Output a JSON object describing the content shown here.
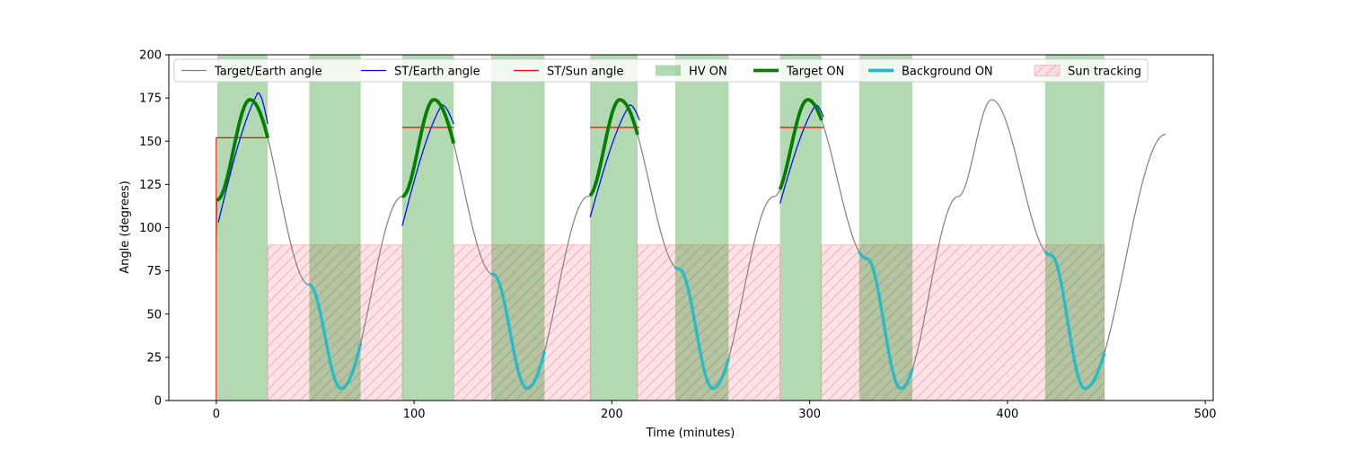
{
  "chart_data": {
    "type": "line",
    "xlabel": "Time (minutes)",
    "ylabel": "Angle (degrees)",
    "xlim": [
      -24,
      504
    ],
    "ylim": [
      0,
      200
    ],
    "x_ticks": [
      0,
      100,
      200,
      300,
      400,
      500
    ],
    "y_ticks": [
      0,
      25,
      50,
      75,
      100,
      125,
      150,
      175,
      200
    ],
    "grid": false,
    "legend_position": "top",
    "colors": {
      "target_earth": "#808080",
      "st_earth": "#0000ff",
      "st_sun": "#ff0000",
      "hv_on": "#008000",
      "target_on": "#008000",
      "background_on": "#17becf",
      "sun_tracking": "#ffb6c1"
    },
    "legend": [
      {
        "label": "Target/Earth angle",
        "kind": "line",
        "series": "target_earth"
      },
      {
        "label": "ST/Earth angle",
        "kind": "line",
        "series": "st_earth"
      },
      {
        "label": "ST/Sun angle",
        "kind": "line",
        "series": "st_sun"
      },
      {
        "label": "HV ON",
        "kind": "patch",
        "series": "hv_on"
      },
      {
        "label": "Target ON",
        "kind": "thickline",
        "series": "target_on"
      },
      {
        "label": "Background ON",
        "kind": "thickline",
        "series": "background_on"
      },
      {
        "label": "Sun tracking",
        "kind": "hatch",
        "series": "sun_tracking"
      }
    ],
    "target_earth": {
      "points": [
        [
          0,
          88
        ],
        [
          0.3,
          116
        ],
        [
          17,
          174
        ],
        [
          47,
          67
        ],
        [
          63,
          7
        ],
        [
          94,
          118
        ],
        [
          110,
          174
        ],
        [
          140,
          73
        ],
        [
          157,
          7
        ],
        [
          188,
          118
        ],
        [
          204,
          174
        ],
        [
          234,
          76
        ],
        [
          251,
          7
        ],
        [
          282,
          118
        ],
        [
          299,
          174
        ],
        [
          329,
          82
        ],
        [
          346,
          7
        ],
        [
          375,
          118
        ],
        [
          392,
          174
        ],
        [
          422,
          84
        ],
        [
          439,
          7
        ],
        [
          480,
          154
        ]
      ]
    },
    "st_earth": {
      "segments": [
        [
          [
            1,
            103
          ],
          [
            21,
            178
          ],
          [
            26,
            160
          ]
        ],
        [
          [
            94,
            101
          ],
          [
            114,
            171
          ],
          [
            120,
            160
          ]
        ],
        [
          [
            189,
            106
          ],
          [
            209,
            171
          ],
          [
            214,
            162
          ]
        ],
        [
          [
            285,
            114
          ],
          [
            303,
            171
          ],
          [
            307,
            164
          ]
        ]
      ]
    },
    "st_sun": {
      "segments": [
        [
          [
            0,
            0
          ],
          [
            0,
            152
          ],
          [
            26,
            152
          ]
        ],
        [
          [
            94,
            158
          ],
          [
            120,
            158
          ]
        ],
        [
          [
            189,
            158
          ],
          [
            214,
            158
          ]
        ],
        [
          [
            285,
            158
          ],
          [
            307,
            158
          ]
        ]
      ]
    },
    "hv_on": [
      [
        0.5,
        26
      ],
      [
        47,
        73
      ],
      [
        94,
        120
      ],
      [
        139,
        166
      ],
      [
        189,
        213
      ],
      [
        232,
        259
      ],
      [
        285,
        306
      ],
      [
        325,
        352
      ],
      [
        419,
        449
      ]
    ],
    "target_on": [
      [
        0.3,
        26
      ],
      [
        94,
        120
      ],
      [
        189,
        213
      ],
      [
        285,
        306
      ]
    ],
    "background_on": [
      [
        47,
        73
      ],
      [
        139,
        166
      ],
      [
        232,
        259
      ],
      [
        325,
        352
      ],
      [
        419,
        449
      ]
    ],
    "sun_tracking": {
      "ymax": 90,
      "ranges": [
        [
          26,
          94
        ],
        [
          120,
          189
        ],
        [
          213,
          285
        ],
        [
          306,
          449
        ]
      ]
    }
  }
}
